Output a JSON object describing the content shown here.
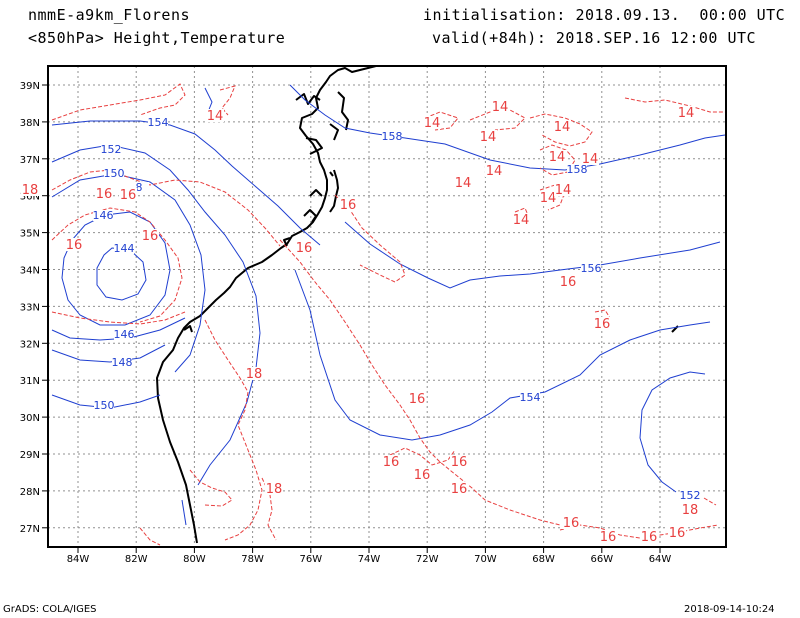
{
  "header": {
    "model": "nmmE-a9km_Florens",
    "field": "<850hPa> Height,Temperature",
    "init": "initialisation: 2018.09.13.  00:00 UTC",
    "valid": "valid(+84h): 2018.SEP.16 12:00 UTC"
  },
  "footer": {
    "credit": "GrADS: COLA/IGES",
    "timestamp": "2018-09-14-10:24"
  },
  "map": {
    "lon_range": [
      -85,
      -63
    ],
    "lat_range": [
      26.5,
      39.5
    ],
    "lon_ticks": [
      "84W",
      "82W",
      "80W",
      "78W",
      "76W",
      "74W",
      "72W",
      "70W",
      "68W",
      "66W",
      "64W"
    ],
    "lat_ticks": [
      "39N",
      "38N",
      "37N",
      "36N",
      "35N",
      "34N",
      "33N",
      "32N",
      "31N",
      "30N",
      "29N",
      "28N",
      "27N"
    ],
    "colors": {
      "height": "#1f3fd0",
      "temperature": "#e84040",
      "coast": "#000000",
      "grid": "#909090"
    },
    "height_labels": [
      "154",
      "152",
      "150",
      "146",
      "144",
      "146",
      "148",
      "150",
      "158",
      "156",
      "154",
      "152",
      "158",
      "8"
    ],
    "temperature_labels": [
      "14",
      "14",
      "14",
      "14",
      "14",
      "14",
      "14",
      "14",
      "14",
      "14",
      "14",
      "14",
      "14",
      "16",
      "16",
      "16",
      "16",
      "16",
      "16",
      "16",
      "16",
      "16",
      "16",
      "16",
      "16",
      "16",
      "16",
      "16",
      "16",
      "16",
      "18",
      "18",
      "18",
      "18"
    ]
  }
}
